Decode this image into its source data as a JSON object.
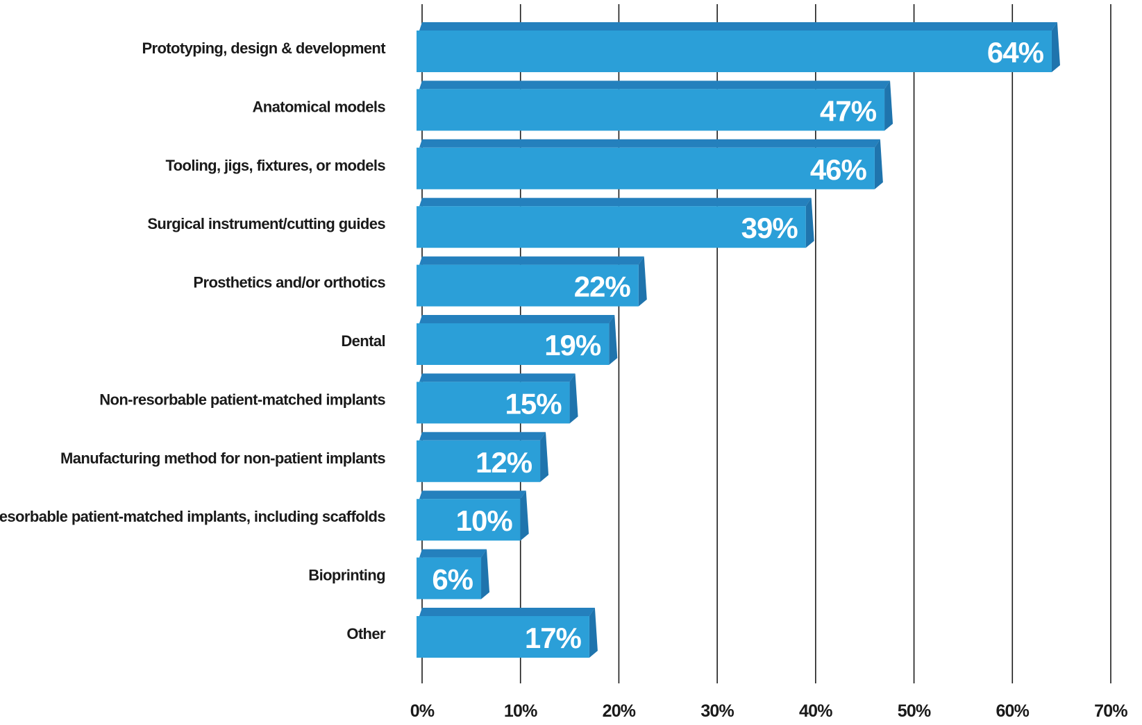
{
  "chart_data": {
    "type": "bar",
    "orientation": "horizontal",
    "categories": [
      "Prototyping, design & development",
      "Anatomical models",
      "Tooling, jigs, fixtures, or models",
      "Surgical instrument/cutting guides",
      "Prosthetics and/or orthotics",
      "Dental",
      "Non-resorbable patient-matched implants",
      "Manufacturing method for non-patient implants",
      "Resorbable patient-matched implants, including scaffolds",
      "Bioprinting",
      "Other"
    ],
    "values": [
      64,
      47,
      46,
      39,
      22,
      19,
      15,
      12,
      10,
      6,
      17
    ],
    "value_labels": [
      "64%",
      "47%",
      "46%",
      "39%",
      "22%",
      "19%",
      "15%",
      "12%",
      "10%",
      "6%",
      "17%"
    ],
    "x_ticks": [
      0,
      10,
      20,
      30,
      40,
      50,
      60,
      70
    ],
    "x_tick_labels": [
      "0%",
      "10%",
      "20%",
      "30%",
      "40%",
      "50%",
      "60%",
      "70%"
    ],
    "xlim": [
      0,
      70
    ],
    "grid": true,
    "title": "",
    "xlabel": "",
    "ylabel": "",
    "colors": {
      "bar_face": "#2b9fd8",
      "bar_top": "#2480bd",
      "bar_side": "#1f74ad",
      "value_text": "#ffffff",
      "gridline": "#1a1a1a",
      "label_text": "#1a1a1a"
    }
  }
}
